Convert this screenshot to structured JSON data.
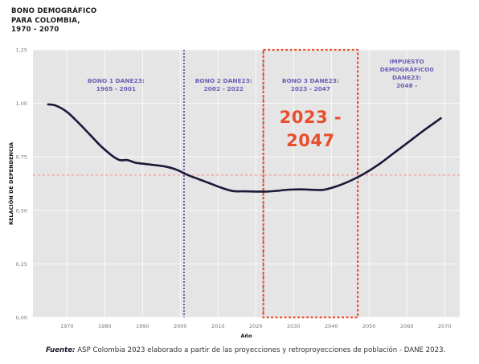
{
  "title": [
    "BONO DEMOGRÁFICO",
    "PARA COLOMBIA,",
    "1970 - 2070"
  ],
  "source": {
    "label": "Fuente:",
    "text": "ASP Colombia 2023 elaborado a partir de las proyecciones y retroproyecciones de población - DANE 2023."
  },
  "colors": {
    "plot_bg": "#e5e5e5",
    "line": "#1c1838",
    "purple": "#6b5fb5",
    "red": "#e94e2d",
    "pink_dashed": "#f2a9a9"
  },
  "chart_data": {
    "type": "line",
    "xlabel": "Año",
    "ylabel": "RELACIÓN DE DEPENDENCIA",
    "xlim": [
      1961,
      2074
    ],
    "ylim": [
      0,
      1.25
    ],
    "x_ticks": [
      1970,
      1980,
      1990,
      2000,
      2010,
      2020,
      2030,
      2040,
      2050,
      2060,
      2070
    ],
    "y_ticks": [
      "0,00",
      "0,25",
      "0,50",
      "0,75",
      "1,00",
      "1,25"
    ],
    "y_tick_values": [
      0,
      0.25,
      0.5,
      0.75,
      1.0,
      1.25
    ],
    "grid": true,
    "series": [
      {
        "x": [
          1965,
          1967,
          1970,
          1973,
          1976,
          1979,
          1982,
          1984,
          1986,
          1988,
          1990,
          1993,
          1996,
          1999,
          2002,
          2005,
          2008,
          2011,
          2014,
          2017,
          2020,
          2023,
          2026,
          2029,
          2032,
          2035,
          2038,
          2041,
          2044,
          2047,
          2050,
          2053,
          2056,
          2059,
          2062,
          2065,
          2069
        ],
        "y": [
          0.995,
          0.99,
          0.96,
          0.91,
          0.855,
          0.8,
          0.755,
          0.735,
          0.735,
          0.723,
          0.718,
          0.712,
          0.705,
          0.69,
          0.665,
          0.645,
          0.625,
          0.605,
          0.59,
          0.589,
          0.588,
          0.588,
          0.592,
          0.597,
          0.598,
          0.596,
          0.596,
          0.61,
          0.63,
          0.655,
          0.685,
          0.72,
          0.76,
          0.8,
          0.84,
          0.88,
          0.93
        ]
      }
    ],
    "reference_line_y": 0.665,
    "vlines": [
      2001,
      2022,
      2046.5
    ],
    "periods": [
      {
        "lines": [
          "BONO 1 DANE23:",
          "1965 - 2001"
        ],
        "x": 1983
      },
      {
        "lines": [
          "BONO 2 DANE23:",
          "2002 - 2022"
        ],
        "x": 2011.5
      },
      {
        "lines": [
          "BONO 3 DANE23:",
          "2023 - 2047"
        ],
        "x": 2034.5
      },
      {
        "lines": [
          "IMPUESTO",
          "DEMOGRÁFICO0",
          "DANE23:",
          "2048 -"
        ],
        "x": 2060
      }
    ],
    "highlight": {
      "x0": 2022,
      "x1": 2047,
      "y0": 0.0,
      "y1": 1.25,
      "lines": [
        "2023 -",
        "2047"
      ]
    }
  }
}
